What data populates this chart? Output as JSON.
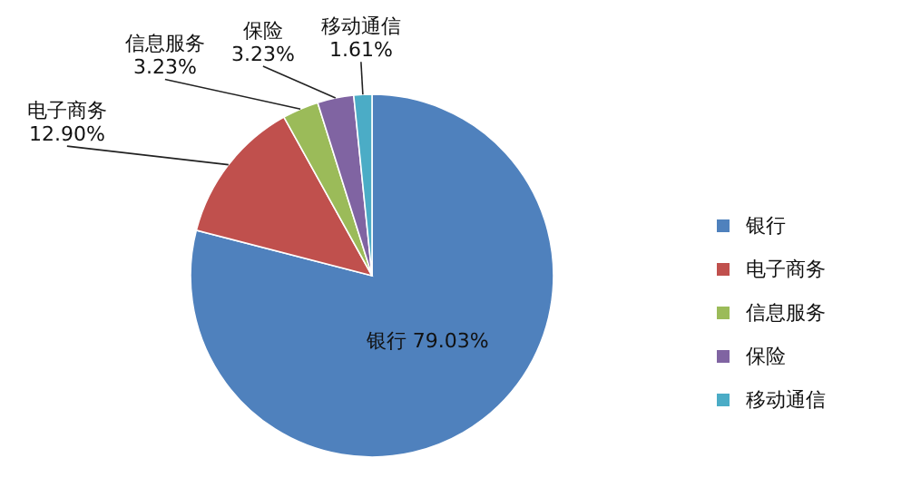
{
  "chart_data": {
    "type": "pie",
    "categories": [
      "银行",
      "电子商务",
      "信息服务",
      "保险",
      "移动通信"
    ],
    "values": [
      79.03,
      12.9,
      3.23,
      3.23,
      1.61
    ],
    "colors": [
      "#4f81bd",
      "#c0504d",
      "#9bbb59",
      "#8064a2",
      "#4bacc6"
    ],
    "value_labels": [
      "79.03%",
      "12.90%",
      "3.23%",
      "3.23%",
      "1.61%"
    ],
    "legend": "right"
  }
}
